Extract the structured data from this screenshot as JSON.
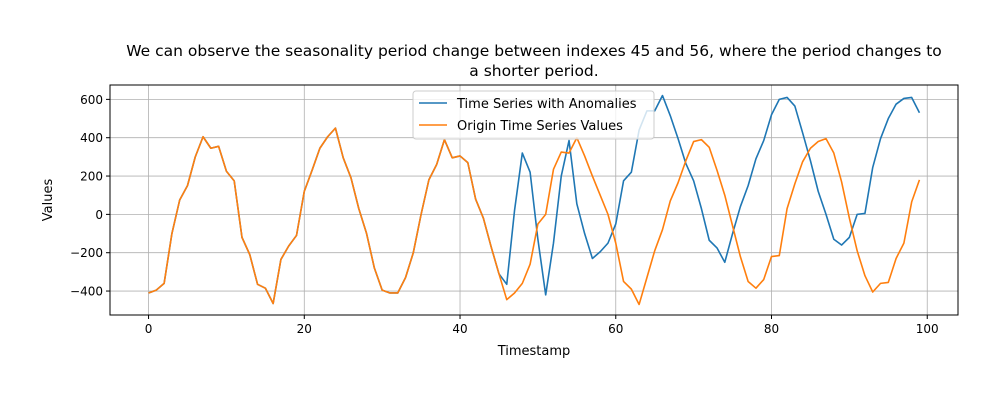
{
  "chart_data": {
    "type": "line",
    "title_line1": "We can observe the seasonality period change between indexes 45 and 56, where the period changes to",
    "title_line2": "a shorter period.",
    "xlabel": "Timestamp",
    "ylabel": "Values",
    "xlim": [
      -4.95,
      103.95
    ],
    "ylim": [
      -525,
      675
    ],
    "xticks": [
      0,
      20,
      40,
      60,
      80,
      100
    ],
    "yticks": [
      -400,
      -200,
      0,
      200,
      400,
      600
    ],
    "grid": true,
    "legend_position": "top-center",
    "series": [
      {
        "name": "Time Series with Anomalies",
        "color": "#1f77b4",
        "values": [
          -410,
          -395,
          -360,
          -100,
          75,
          150,
          300,
          405,
          345,
          355,
          225,
          175,
          -120,
          -210,
          -365,
          -385,
          -465,
          -235,
          -165,
          -110,
          120,
          230,
          345,
          405,
          450,
          295,
          190,
          30,
          -100,
          -280,
          -395,
          -410,
          -410,
          -330,
          -200,
          0,
          180,
          260,
          390,
          295,
          305,
          270,
          80,
          -20,
          -170,
          -310,
          -365,
          20,
          320,
          220,
          -130,
          -420,
          -150,
          200,
          385,
          55,
          -100,
          -230,
          -195,
          -150,
          -50,
          175,
          220,
          440,
          540,
          540,
          620,
          515,
          395,
          265,
          175,
          30,
          -135,
          -175,
          -250,
          -100,
          40,
          150,
          290,
          385,
          520,
          600,
          610,
          565,
          425,
          280,
          120,
          0,
          -130,
          -160,
          -120,
          0,
          5,
          245,
          395,
          500,
          575,
          605,
          610,
          530
        ]
      },
      {
        "name": "Origin Time Series Values",
        "color": "#ff7f0e",
        "values": [
          -410,
          -395,
          -360,
          -100,
          75,
          150,
          300,
          405,
          345,
          355,
          225,
          175,
          -120,
          -210,
          -365,
          -385,
          -465,
          -235,
          -165,
          -110,
          120,
          230,
          345,
          405,
          450,
          295,
          190,
          30,
          -100,
          -280,
          -395,
          -410,
          -410,
          -330,
          -200,
          0,
          180,
          260,
          390,
          295,
          305,
          270,
          80,
          -20,
          -170,
          -310,
          -445,
          -410,
          -360,
          -260,
          -50,
          0,
          235,
          325,
          320,
          400,
          305,
          200,
          100,
          0,
          -150,
          -350,
          -390,
          -470,
          -330,
          -190,
          -80,
          70,
          165,
          280,
          380,
          390,
          350,
          230,
          100,
          -60,
          -220,
          -350,
          -385,
          -340,
          -220,
          -215,
          30,
          160,
          275,
          345,
          380,
          395,
          320,
          170,
          -20,
          -190,
          -320,
          -405,
          -360,
          -355,
          -230,
          -150,
          65,
          180
        ]
      }
    ]
  }
}
